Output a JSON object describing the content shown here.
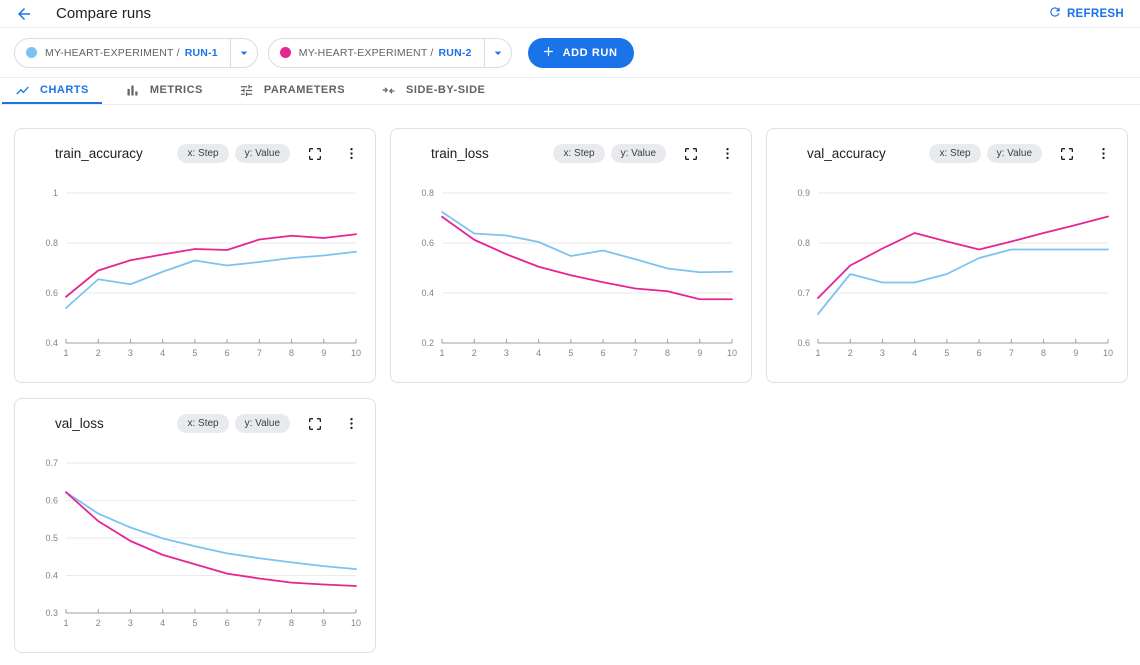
{
  "header": {
    "title": "Compare runs",
    "refresh": "REFRESH"
  },
  "run_bar": {
    "runs": [
      {
        "experiment": "MY-HEART-EXPERIMENT /",
        "name": "RUN-1",
        "color": "#7CC3F2"
      },
      {
        "experiment": "MY-HEART-EXPERIMENT /",
        "name": "RUN-2",
        "color": "#E52592"
      }
    ],
    "add_run": "ADD RUN"
  },
  "tabs": [
    {
      "label": "CHARTS",
      "icon": "line-chart-icon",
      "active": true
    },
    {
      "label": "METRICS",
      "icon": "bar-chart-icon",
      "active": false
    },
    {
      "label": "PARAMETERS",
      "icon": "tune-icon",
      "active": false
    },
    {
      "label": "SIDE-BY-SIDE",
      "icon": "side-by-side-icon",
      "active": false
    }
  ],
  "card_chips": {
    "x": "x: Step",
    "y": "y: Value"
  },
  "colors": {
    "accent": "#1A73E8",
    "grid": "#E9EAED",
    "axis": "#9AA0A6",
    "axis_text": "#80868B"
  },
  "chart_data": [
    {
      "type": "line",
      "title": "train_accuracy",
      "x": [
        1,
        2,
        3,
        4,
        5,
        6,
        7,
        8,
        9,
        10
      ],
      "xlabel": "Step",
      "ylabel": "Value",
      "ylim": [
        0.4,
        1
      ],
      "yticks": [
        0.4,
        0.6,
        0.8,
        1
      ],
      "grid": true,
      "legend": "none",
      "series": [
        {
          "name": "RUN-1",
          "values": [
            0.54,
            0.655,
            0.635,
            0.685,
            0.73,
            0.71,
            0.724,
            0.74,
            0.75,
            0.765
          ]
        },
        {
          "name": "RUN-2",
          "values": [
            0.585,
            0.69,
            0.731,
            0.754,
            0.776,
            0.772,
            0.814,
            0.829,
            0.82,
            0.835
          ]
        }
      ]
    },
    {
      "type": "line",
      "title": "train_loss",
      "x": [
        1,
        2,
        3,
        4,
        5,
        6,
        7,
        8,
        9,
        10
      ],
      "xlabel": "Step",
      "ylabel": "Value",
      "ylim": [
        0.2,
        0.8
      ],
      "yticks": [
        0.2,
        0.4,
        0.6,
        0.8
      ],
      "grid": true,
      "legend": "none",
      "series": [
        {
          "name": "RUN-1",
          "values": [
            0.724,
            0.638,
            0.63,
            0.604,
            0.548,
            0.57,
            0.535,
            0.498,
            0.483,
            0.485
          ]
        },
        {
          "name": "RUN-2",
          "values": [
            0.705,
            0.613,
            0.555,
            0.505,
            0.471,
            0.443,
            0.418,
            0.407,
            0.375,
            0.375
          ]
        }
      ]
    },
    {
      "type": "line",
      "title": "val_accuracy",
      "x": [
        1,
        2,
        3,
        4,
        5,
        6,
        7,
        8,
        9,
        10
      ],
      "xlabel": "Step",
      "ylabel": "Value",
      "ylim": [
        0.6,
        0.9
      ],
      "yticks": [
        0.6,
        0.7,
        0.8,
        0.9
      ],
      "grid": true,
      "legend": "none",
      "series": [
        {
          "name": "RUN-1",
          "values": [
            0.658,
            0.738,
            0.721,
            0.721,
            0.738,
            0.77,
            0.787,
            0.787,
            0.787,
            0.787
          ]
        },
        {
          "name": "RUN-2",
          "values": [
            0.69,
            0.755,
            0.789,
            0.82,
            0.803,
            0.787,
            0.803,
            0.82,
            0.836,
            0.853
          ]
        }
      ]
    },
    {
      "type": "line",
      "title": "val_loss",
      "x": [
        1,
        2,
        3,
        4,
        5,
        6,
        7,
        8,
        9,
        10
      ],
      "xlabel": "Step",
      "ylabel": "Value",
      "ylim": [
        0.3,
        0.7
      ],
      "yticks": [
        0.3,
        0.4,
        0.5,
        0.6,
        0.7
      ],
      "grid": true,
      "legend": "none",
      "series": [
        {
          "name": "RUN-1",
          "values": [
            0.622,
            0.565,
            0.528,
            0.499,
            0.478,
            0.459,
            0.446,
            0.435,
            0.425,
            0.417
          ]
        },
        {
          "name": "RUN-2",
          "values": [
            0.622,
            0.545,
            0.492,
            0.455,
            0.43,
            0.405,
            0.392,
            0.381,
            0.376,
            0.372
          ]
        }
      ]
    }
  ]
}
